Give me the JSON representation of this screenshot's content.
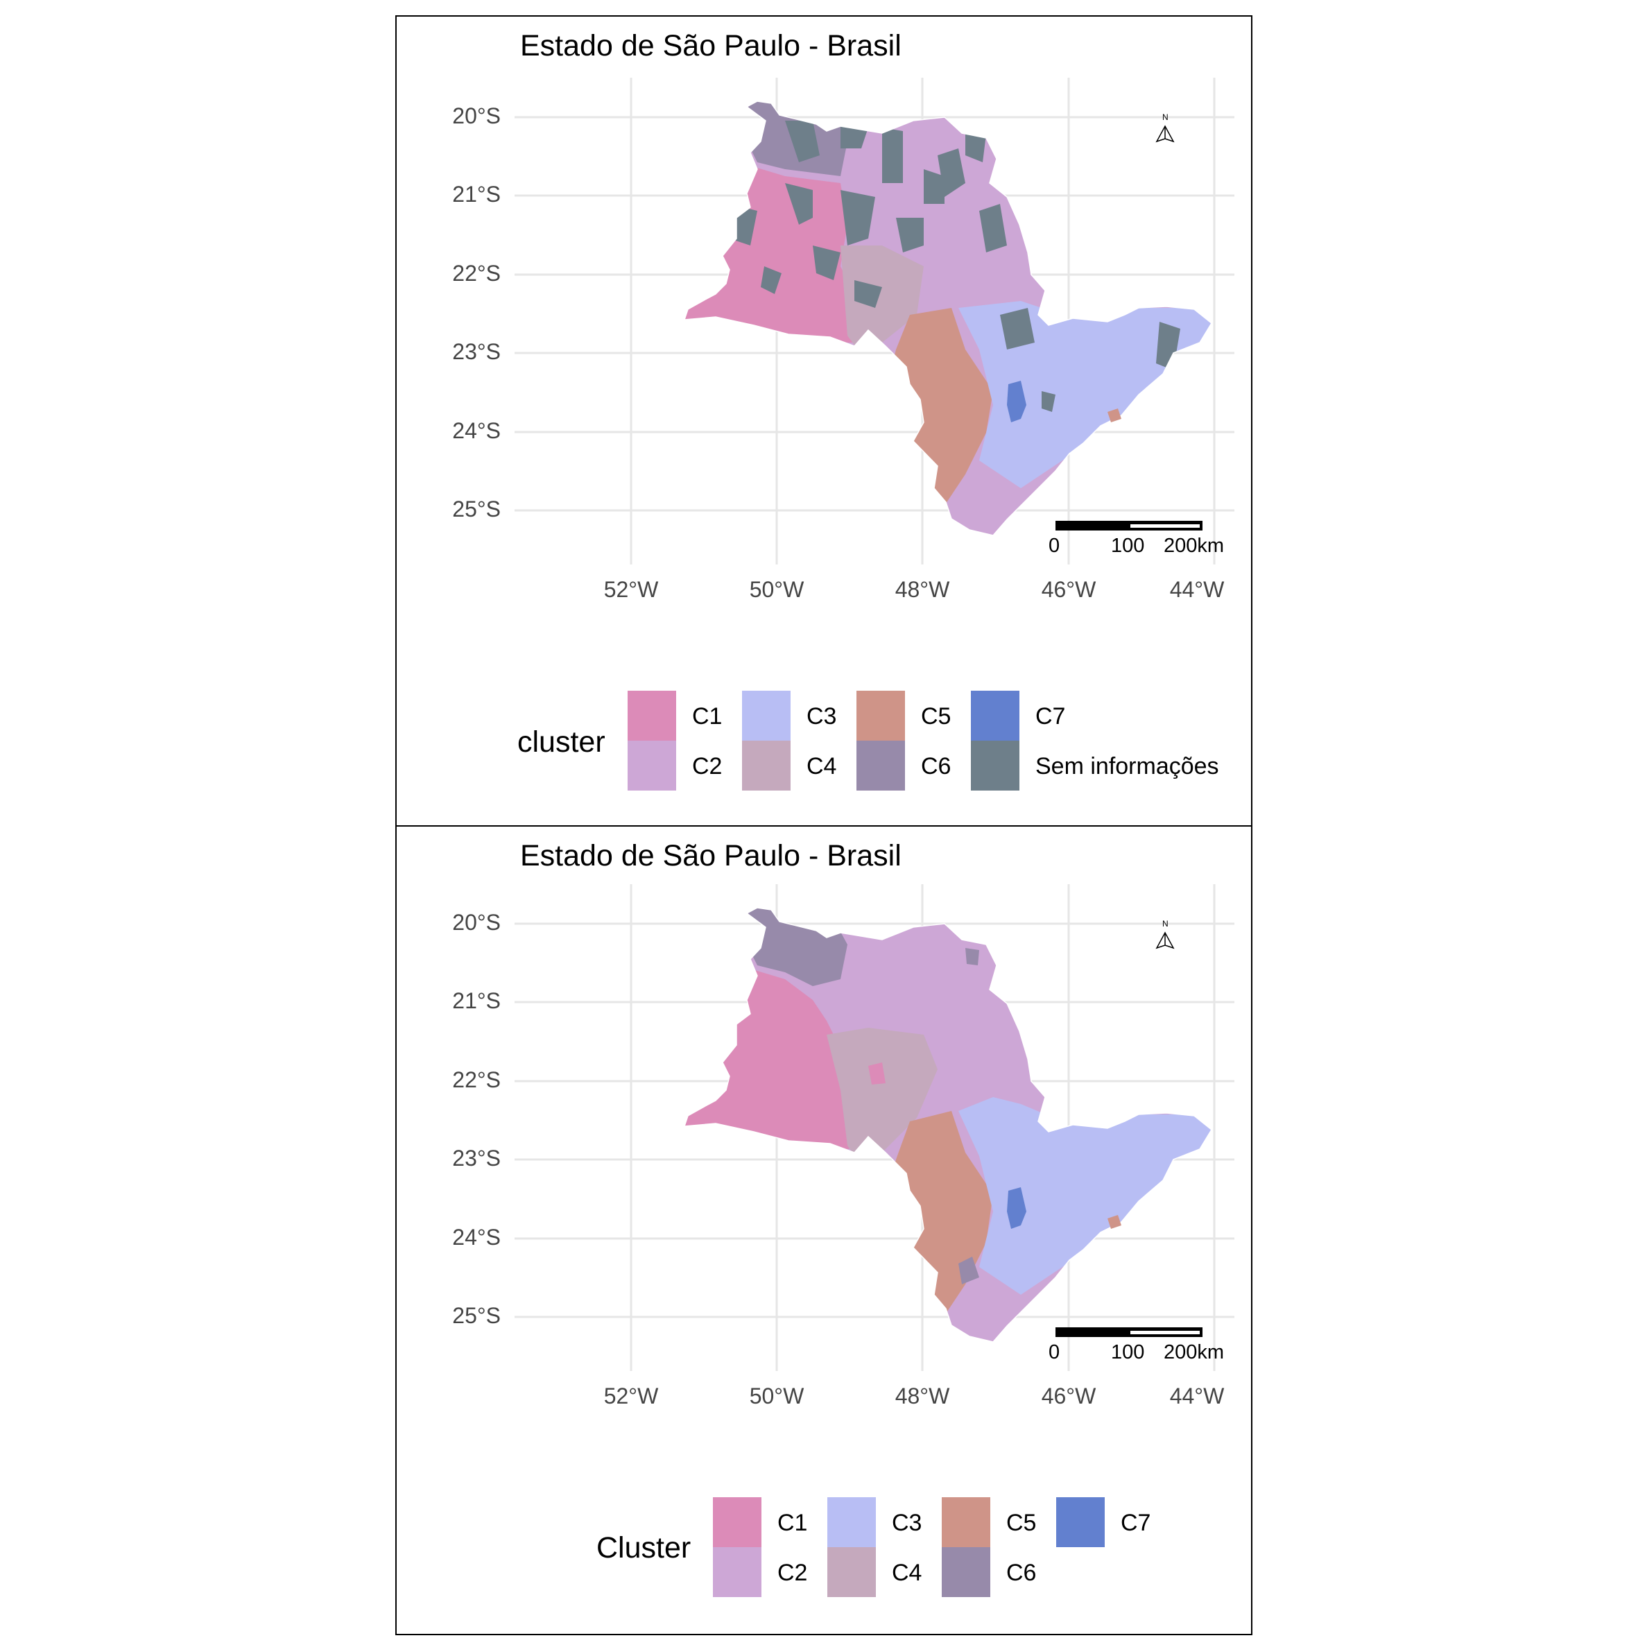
{
  "colors": {
    "C1": "#dc8bb8",
    "C2": "#cda7d6",
    "C3": "#b8bef4",
    "C4": "#c5a9bd",
    "C5": "#cf9488",
    "C6": "#978aaa",
    "C7": "#6280cf",
    "Sem informações": "#6e7f8a"
  },
  "maps": [
    {
      "title": "Estado de São Paulo - Brasil",
      "lat_ticks": [
        "20°S",
        "21°S",
        "22°S",
        "23°S",
        "24°S",
        "25°S"
      ],
      "lon_ticks": [
        "52°W",
        "50°W",
        "48°W",
        "46°W",
        "44°W"
      ],
      "scale_labels": [
        "0",
        "100",
        "200km"
      ],
      "north_label": "N",
      "legend_title": "cluster",
      "legend_items": [
        {
          "label": "C1",
          "key": "C1"
        },
        {
          "label": "C2",
          "key": "C2"
        },
        {
          "label": "C3",
          "key": "C3"
        },
        {
          "label": "C4",
          "key": "C4"
        },
        {
          "label": "C5",
          "key": "C5"
        },
        {
          "label": "C6",
          "key": "C6"
        },
        {
          "label": "C7",
          "key": "C7"
        },
        {
          "label": "Sem informações",
          "key": "Sem informações"
        }
      ]
    },
    {
      "title": "Estado de São Paulo - Brasil",
      "lat_ticks": [
        "20°S",
        "21°S",
        "22°S",
        "23°S",
        "24°S",
        "25°S"
      ],
      "lon_ticks": [
        "52°W",
        "50°W",
        "48°W",
        "46°W",
        "44°W"
      ],
      "scale_labels": [
        "0",
        "100",
        "200km"
      ],
      "north_label": "N",
      "legend_title": "Cluster",
      "legend_items": [
        {
          "label": "C1",
          "key": "C1"
        },
        {
          "label": "C2",
          "key": "C2"
        },
        {
          "label": "C3",
          "key": "C3"
        },
        {
          "label": "C4",
          "key": "C4"
        },
        {
          "label": "C5",
          "key": "C5"
        },
        {
          "label": "C6",
          "key": "C6"
        },
        {
          "label": "C7",
          "key": "C7"
        }
      ]
    }
  ]
}
